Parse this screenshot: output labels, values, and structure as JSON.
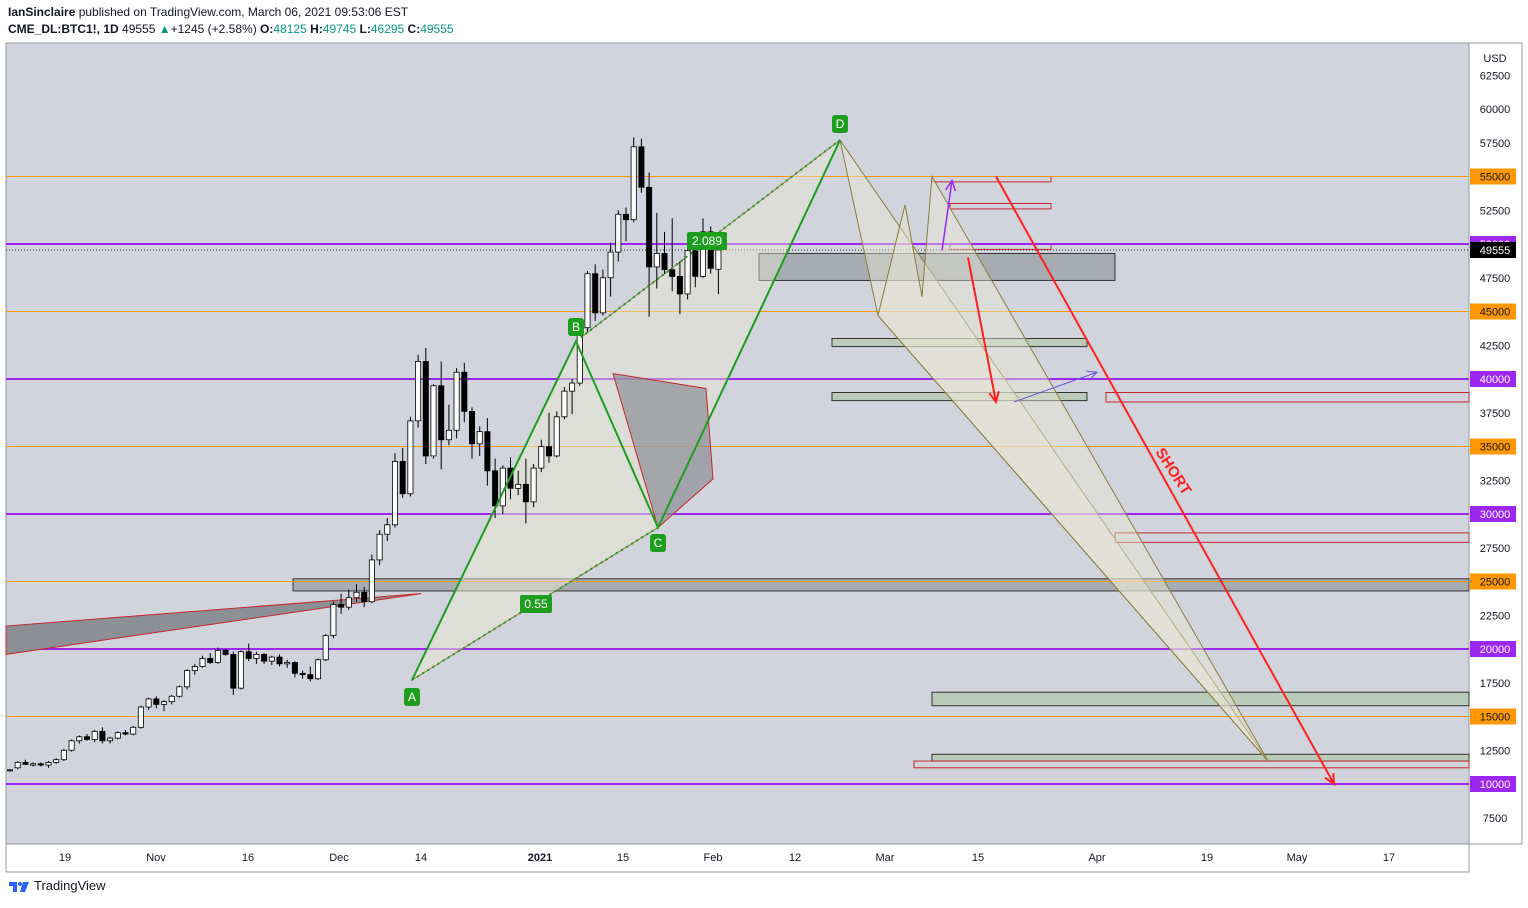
{
  "header": {
    "publisher": "IanSinclaire",
    "published_line": " published on TradingView.com, March 06, 2021 09:53:06 EST",
    "symbol": "CME_DL:BTC1!, 1D",
    "last": "49555",
    "change": "+1245 (+2.58%)",
    "o_label": "O:",
    "o": "48125",
    "h_label": "H:",
    "h": "49745",
    "l_label": "L:",
    "l": "46295",
    "c_label": "C:",
    "c": "49555"
  },
  "footer": {
    "brand": "TradingView"
  },
  "colors": {
    "background": "#d1d4dc",
    "up_candle": "#ffffff",
    "down_candle": "#000000",
    "orange_level": "#ff9800",
    "purple_level": "#9c27f0",
    "pattern_green": "#1e9e1e",
    "short_arrow": "#ff2020"
  },
  "chart_data": {
    "type": "candlestick",
    "axis_currency": "USD",
    "y_ticks": [
      7500,
      12500,
      17500,
      22500,
      27500,
      32500,
      37500,
      42500,
      47500,
      52500,
      57500,
      60000,
      62500
    ],
    "x_ticks": [
      "19",
      "Nov",
      "16",
      "Dec",
      "14",
      "2021",
      "15",
      "Feb",
      "12",
      "Mar",
      "15",
      "Apr",
      "19",
      "May",
      "17"
    ],
    "price_levels": [
      {
        "value": 55000,
        "label": "55000",
        "kind": "orange"
      },
      {
        "value": 50000,
        "label": "50000",
        "kind": "purple"
      },
      {
        "value": 45000,
        "label": "45000",
        "kind": "orange"
      },
      {
        "value": 40000,
        "label": "40000",
        "kind": "purple"
      },
      {
        "value": 35000,
        "label": "35000",
        "kind": "orange"
      },
      {
        "value": 30000,
        "label": "30000",
        "kind": "purple"
      },
      {
        "value": 25000,
        "label": "25000",
        "kind": "orange"
      },
      {
        "value": 20000,
        "label": "20000",
        "kind": "purple"
      },
      {
        "value": 15000,
        "label": "15000",
        "kind": "orange"
      },
      {
        "value": 10000,
        "label": "10000",
        "kind": "purple"
      }
    ],
    "last_price": {
      "value": 49555,
      "label": "49555"
    },
    "pattern_points": [
      {
        "label": "A",
        "date": "2020-12-11",
        "value": 17700
      },
      {
        "label": "B",
        "date": "2021-01-08",
        "value": 42800
      },
      {
        "label": "C",
        "date": "2021-01-22",
        "value": 29000
      },
      {
        "label": "D",
        "date": "2021-02-21",
        "value": 57700
      }
    ],
    "ratios": [
      {
        "text": "2.089"
      },
      {
        "text": "0.55"
      }
    ],
    "annotation": "SHORT",
    "candles": [
      [
        11000,
        11100,
        10900,
        11050
      ],
      [
        11200,
        11700,
        11100,
        11600
      ],
      [
        11600,
        11800,
        11400,
        11450
      ],
      [
        11400,
        11600,
        11300,
        11500
      ],
      [
        11500,
        11600,
        11300,
        11400
      ],
      [
        11400,
        11700,
        11200,
        11600
      ],
      [
        11600,
        11900,
        11500,
        11800
      ],
      [
        11800,
        12600,
        11700,
        12500
      ],
      [
        12500,
        13300,
        12400,
        13200
      ],
      [
        13200,
        13600,
        13000,
        13500
      ],
      [
        13500,
        13700,
        13200,
        13300
      ],
      [
        13300,
        14000,
        13100,
        13900
      ],
      [
        13900,
        14200,
        13000,
        13200
      ],
      [
        13200,
        13500,
        13000,
        13400
      ],
      [
        13400,
        13900,
        13300,
        13800
      ],
      [
        13800,
        14000,
        13600,
        13700
      ],
      [
        13700,
        14300,
        13600,
        14200
      ],
      [
        14200,
        15800,
        14100,
        15700
      ],
      [
        15700,
        16400,
        15500,
        16300
      ],
      [
        16300,
        16500,
        15600,
        15900
      ],
      [
        15900,
        16200,
        15400,
        16100
      ],
      [
        16100,
        16600,
        15900,
        16500
      ],
      [
        16500,
        17300,
        16400,
        17200
      ],
      [
        17200,
        18500,
        17000,
        18400
      ],
      [
        18400,
        18900,
        18100,
        18700
      ],
      [
        18700,
        19500,
        18600,
        19300
      ],
      [
        19300,
        19700,
        18900,
        19000
      ],
      [
        19000,
        20100,
        18900,
        19900
      ],
      [
        19900,
        20000,
        19500,
        19600
      ],
      [
        19600,
        19800,
        16600,
        17100
      ],
      [
        17100,
        19900,
        17000,
        19800
      ],
      [
        19800,
        20400,
        19100,
        19300
      ],
      [
        19300,
        19800,
        18900,
        19600
      ],
      [
        19600,
        19700,
        18900,
        19100
      ],
      [
        19100,
        19500,
        18800,
        19400
      ],
      [
        19400,
        19600,
        18700,
        18900
      ],
      [
        18900,
        19200,
        18600,
        19000
      ],
      [
        19000,
        19100,
        17900,
        18200
      ],
      [
        18200,
        18400,
        17800,
        18100
      ],
      [
        18100,
        18700,
        17600,
        17800
      ],
      [
        17800,
        19300,
        17700,
        19200
      ],
      [
        19200,
        21100,
        19100,
        21000
      ],
      [
        21000,
        23500,
        20800,
        23300
      ],
      [
        23300,
        24100,
        22600,
        23100
      ],
      [
        23100,
        24400,
        22900,
        23800
      ],
      [
        23800,
        24800,
        23500,
        24200
      ],
      [
        24200,
        24600,
        23100,
        23500
      ],
      [
        23500,
        27000,
        23400,
        26600
      ],
      [
        26600,
        28800,
        26200,
        28500
      ],
      [
        28500,
        29700,
        28000,
        29200
      ],
      [
        29200,
        34500,
        29000,
        33900
      ],
      [
        33900,
        34900,
        31200,
        31500
      ],
      [
        31500,
        37200,
        31300,
        36900
      ],
      [
        36900,
        41800,
        36400,
        41300
      ],
      [
        41300,
        42300,
        33700,
        34300
      ],
      [
        34300,
        39600,
        34100,
        39500
      ],
      [
        39500,
        41300,
        33300,
        35500
      ],
      [
        35500,
        38100,
        35100,
        36200
      ],
      [
        36200,
        40800,
        35600,
        40500
      ],
      [
        40500,
        41200,
        36800,
        37600
      ],
      [
        37600,
        37900,
        34100,
        35200
      ],
      [
        35200,
        36500,
        34300,
        36100
      ],
      [
        36100,
        37100,
        32100,
        33200
      ],
      [
        33200,
        34100,
        29700,
        30600
      ],
      [
        30600,
        33600,
        30000,
        33400
      ],
      [
        33400,
        34200,
        31100,
        31900
      ],
      [
        31900,
        33200,
        31400,
        32200
      ],
      [
        32200,
        34100,
        29300,
        30900
      ],
      [
        30900,
        33700,
        30500,
        33400
      ],
      [
        33400,
        35500,
        33100,
        35000
      ],
      [
        35000,
        37500,
        33800,
        34300
      ],
      [
        34300,
        37600,
        34200,
        37200
      ],
      [
        37200,
        39400,
        37000,
        39100
      ],
      [
        39100,
        40000,
        37400,
        39700
      ],
      [
        39700,
        44100,
        39500,
        43800
      ],
      [
        43800,
        48000,
        43500,
        47800
      ],
      [
        47800,
        48500,
        44300,
        44900
      ],
      [
        44900,
        48100,
        44700,
        47500
      ],
      [
        47500,
        50100,
        46100,
        49400
      ],
      [
        49400,
        52500,
        48700,
        52200
      ],
      [
        52200,
        52700,
        50200,
        51800
      ],
      [
        51800,
        57900,
        51600,
        57200
      ],
      [
        57200,
        57800,
        53800,
        54200
      ],
      [
        54200,
        55300,
        44600,
        48300
      ],
      [
        48300,
        52300,
        46700,
        49300
      ],
      [
        49300,
        50900,
        47800,
        48100
      ],
      [
        48100,
        51900,
        46500,
        47600
      ],
      [
        47600,
        48700,
        44800,
        46300
      ],
      [
        46300,
        50500,
        45900,
        49500
      ],
      [
        49500,
        50200,
        46800,
        47600
      ],
      [
        47600,
        51900,
        47500,
        50900
      ],
      [
        50900,
        51300,
        47800,
        48200
      ],
      [
        48125,
        49745,
        46295,
        49555
      ]
    ]
  }
}
